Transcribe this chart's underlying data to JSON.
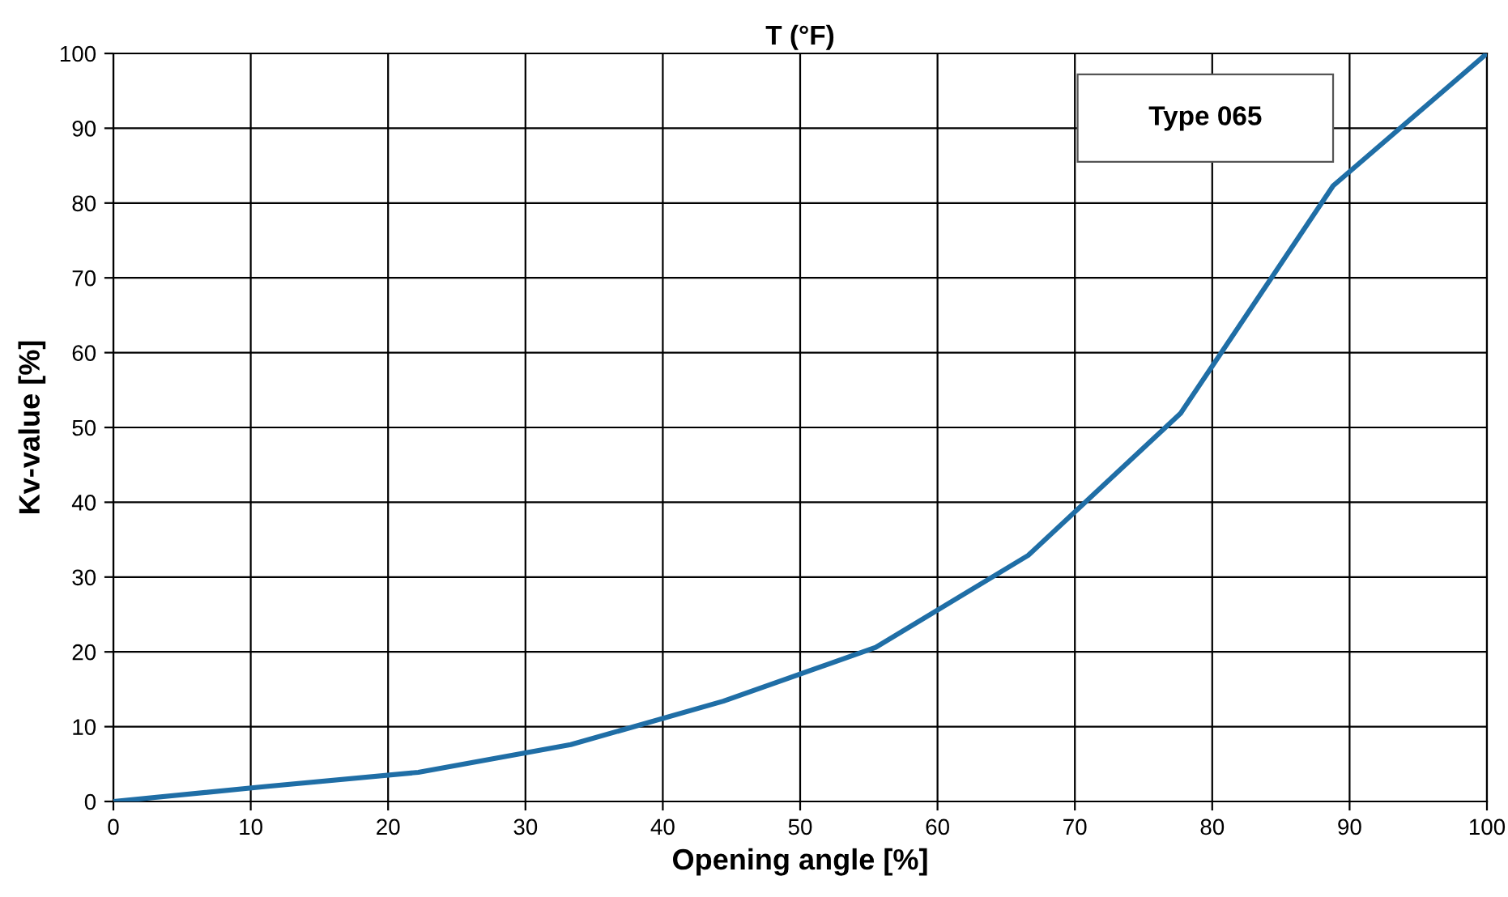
{
  "chart_data": {
    "type": "line",
    "title": "T (°F)",
    "xlabel": "Opening angle [%]",
    "ylabel": "Kv-value [%]",
    "annotations": [
      "Type 065"
    ],
    "x": [
      0,
      11.1,
      22.2,
      33.3,
      44.4,
      55.5,
      66.6,
      77.7,
      88.8,
      100
    ],
    "series": [
      {
        "color": "#1f6ea6",
        "values": [
          0,
          2,
          3.9,
          7.6,
          13.4,
          20.6,
          32.9,
          51.9,
          82.3,
          100
        ]
      }
    ],
    "xlim": [
      0,
      100
    ],
    "ylim": [
      0,
      100
    ],
    "xticks": [
      0,
      10,
      20,
      30,
      40,
      50,
      60,
      70,
      80,
      90,
      100
    ],
    "yticks": [
      0,
      10,
      20,
      30,
      40,
      50,
      60,
      70,
      80,
      90,
      100
    ],
    "grid": true,
    "legend": false,
    "marker": "none",
    "line_style": "solid"
  }
}
